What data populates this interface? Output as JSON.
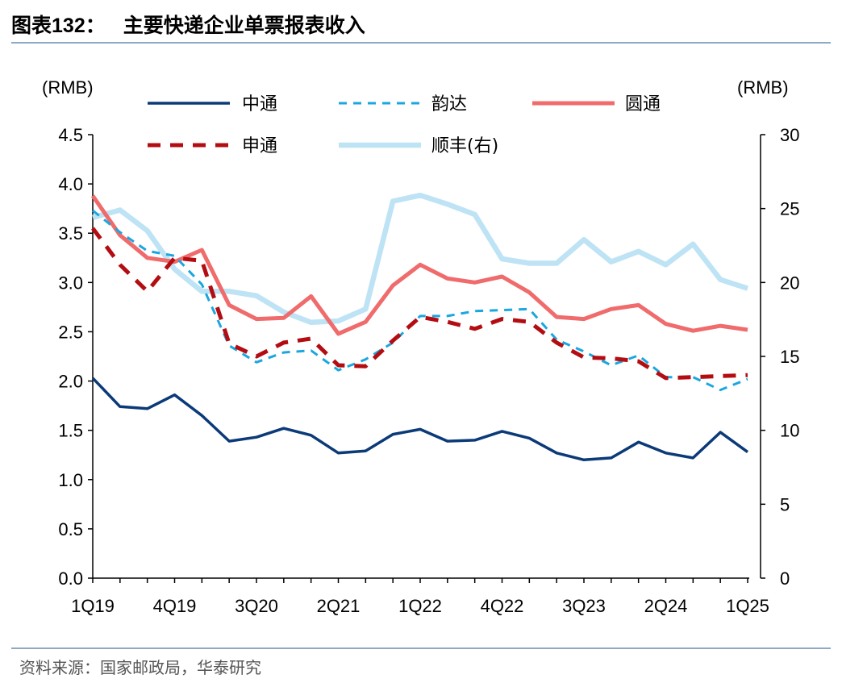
{
  "header": {
    "title_prefix": "图表",
    "title_number": "132：",
    "title_text": "主要快递企业单票报表收入"
  },
  "source": "资料来源：国家邮政局，华泰研究",
  "chart_data": {
    "type": "line",
    "left_axis_label": "(RMB)",
    "right_axis_label": "(RMB)",
    "x": [
      "1Q19",
      "2Q19",
      "3Q19",
      "4Q19",
      "1Q20",
      "2Q20",
      "3Q20",
      "4Q20",
      "1Q21",
      "2Q21",
      "3Q21",
      "4Q21",
      "1Q22",
      "2Q22",
      "3Q22",
      "4Q22",
      "1Q23",
      "2Q23",
      "3Q23",
      "4Q23",
      "1Q24",
      "2Q24",
      "3Q24",
      "4Q24",
      "1Q25"
    ],
    "x_tick_labels": [
      "1Q19",
      "4Q19",
      "3Q20",
      "2Q21",
      "1Q22",
      "4Q22",
      "3Q23",
      "2Q24",
      "1Q25"
    ],
    "y_left": {
      "ticks": [
        "0.0",
        "0.5",
        "1.0",
        "1.5",
        "2.0",
        "2.5",
        "3.0",
        "3.5",
        "4.0",
        "4.5"
      ],
      "lim": [
        0,
        4.5
      ]
    },
    "y_right": {
      "ticks": [
        "0",
        "5",
        "10",
        "15",
        "20",
        "25",
        "30"
      ],
      "lim": [
        0,
        30
      ]
    },
    "grid": false,
    "legend_position": "top",
    "series": [
      {
        "name": "中通",
        "axis": "left",
        "color": "#0b3a78",
        "style": "solid",
        "values": [
          2.03,
          1.74,
          1.72,
          1.86,
          1.65,
          1.39,
          1.43,
          1.52,
          1.45,
          1.27,
          1.29,
          1.46,
          1.51,
          1.39,
          1.4,
          1.49,
          1.42,
          1.27,
          1.2,
          1.22,
          1.38,
          1.27,
          1.22,
          1.48,
          1.28
        ]
      },
      {
        "name": "韵达",
        "axis": "left",
        "color": "#1aa7e0",
        "style": "dashed",
        "values": [
          3.73,
          3.51,
          3.32,
          3.27,
          2.98,
          2.36,
          2.19,
          2.29,
          2.31,
          2.11,
          2.22,
          2.39,
          2.66,
          2.66,
          2.71,
          2.72,
          2.73,
          2.42,
          2.3,
          2.16,
          2.26,
          2.04,
          2.04,
          1.91,
          2.02
        ]
      },
      {
        "name": "圆通",
        "axis": "left",
        "color": "#f06b6b",
        "style": "solid",
        "values": [
          3.88,
          3.48,
          3.25,
          3.21,
          3.33,
          2.77,
          2.63,
          2.64,
          2.86,
          2.48,
          2.6,
          2.97,
          3.18,
          3.04,
          3.0,
          3.06,
          2.9,
          2.65,
          2.63,
          2.73,
          2.77,
          2.58,
          2.51,
          2.56,
          2.52
        ]
      },
      {
        "name": "申通",
        "axis": "left",
        "color": "#b30d12",
        "style": "dashed",
        "values": [
          3.55,
          3.18,
          2.91,
          3.25,
          3.22,
          2.38,
          2.25,
          2.39,
          2.43,
          2.16,
          2.15,
          2.41,
          2.65,
          2.6,
          2.53,
          2.63,
          2.6,
          2.39,
          2.24,
          2.23,
          2.2,
          2.03,
          2.04,
          2.05,
          2.06
        ]
      },
      {
        "name": "顺丰(右)",
        "axis": "right",
        "color": "#bde3f5",
        "style": "solid",
        "values": [
          24.4,
          24.9,
          23.5,
          20.9,
          19.4,
          19.4,
          19.1,
          18.0,
          17.3,
          17.4,
          18.2,
          25.5,
          25.9,
          25.3,
          24.6,
          21.6,
          21.3,
          21.3,
          22.9,
          21.4,
          22.1,
          21.2,
          22.6,
          20.2,
          19.6
        ]
      }
    ],
    "legend_labels": [
      "中通",
      "韵达",
      "圆通",
      "申通",
      "顺丰(右)"
    ]
  }
}
